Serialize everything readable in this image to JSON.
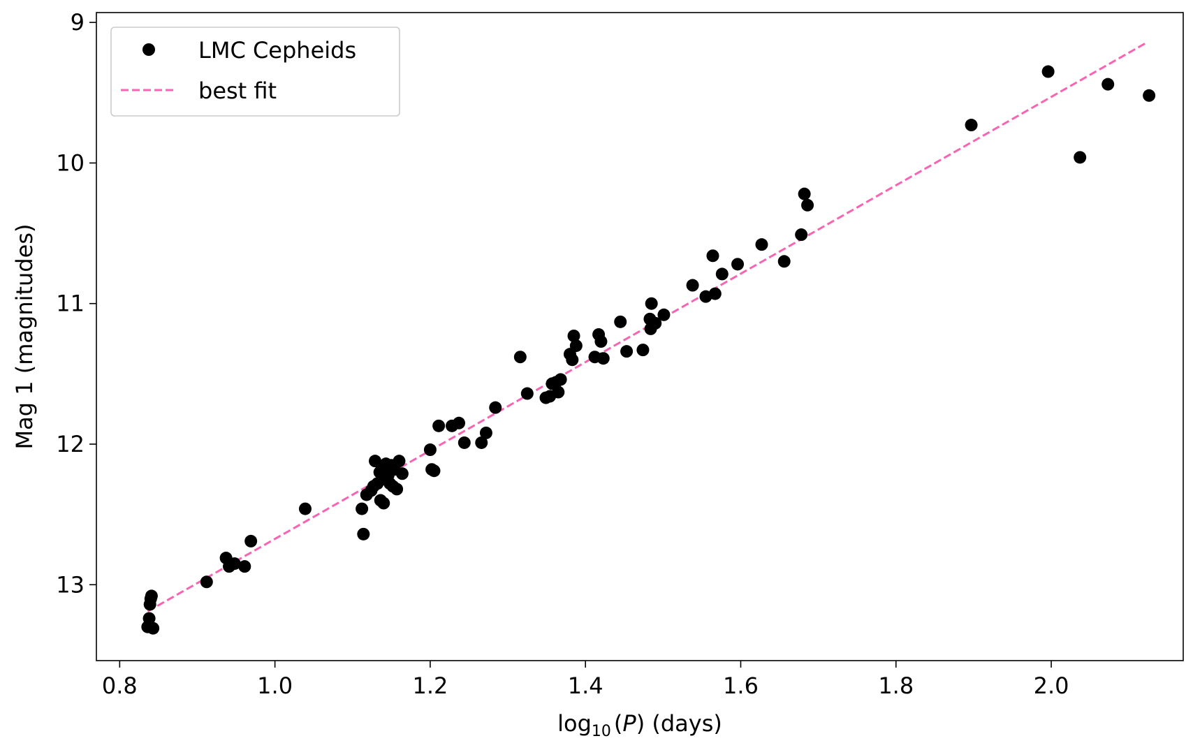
{
  "chart_data": {
    "type": "scatter",
    "title": "",
    "xlabel": "log₁₀(P) (days)",
    "xlabel_parts": {
      "prefix": "log",
      "sub": "10",
      "open": "(",
      "var": "P",
      "close": ") (days)"
    },
    "ylabel": "Mag 1 (magnitudes)",
    "xlim": [
      0.77,
      2.17
    ],
    "ylim": [
      13.54,
      8.93
    ],
    "y_inverted": true,
    "grid": false,
    "legend_position": "top-left",
    "x_ticks": [
      0.8,
      1.0,
      1.2,
      1.4,
      1.6,
      1.8,
      2.0
    ],
    "x_tick_labels": [
      "0.8",
      "1.0",
      "1.2",
      "1.4",
      "1.6",
      "1.8",
      "2.0"
    ],
    "y_ticks": [
      9,
      10,
      11,
      12,
      13
    ],
    "y_tick_labels": [
      "9",
      "10",
      "11",
      "12",
      "13"
    ],
    "series": [
      {
        "name": "LMC Cepheids",
        "kind": "scatter",
        "color": "#000000",
        "points": [
          [
            0.836,
            13.3
          ],
          [
            0.838,
            13.24
          ],
          [
            0.839,
            13.14
          ],
          [
            0.84,
            13.1
          ],
          [
            0.841,
            13.08
          ],
          [
            0.843,
            13.31
          ],
          [
            0.912,
            12.98
          ],
          [
            0.937,
            12.81
          ],
          [
            0.941,
            12.87
          ],
          [
            0.948,
            12.85
          ],
          [
            0.961,
            12.87
          ],
          [
            0.969,
            12.69
          ],
          [
            1.039,
            12.46
          ],
          [
            1.112,
            12.46
          ],
          [
            1.114,
            12.64
          ],
          [
            1.118,
            12.36
          ],
          [
            1.124,
            12.33
          ],
          [
            1.127,
            12.3
          ],
          [
            1.129,
            12.12
          ],
          [
            1.132,
            12.28
          ],
          [
            1.135,
            12.2
          ],
          [
            1.136,
            12.4
          ],
          [
            1.138,
            12.17
          ],
          [
            1.14,
            12.42
          ],
          [
            1.142,
            12.25
          ],
          [
            1.143,
            12.14
          ],
          [
            1.146,
            12.22
          ],
          [
            1.148,
            12.28
          ],
          [
            1.15,
            12.15
          ],
          [
            1.152,
            12.3
          ],
          [
            1.154,
            12.18
          ],
          [
            1.157,
            12.32
          ],
          [
            1.16,
            12.12
          ],
          [
            1.164,
            12.21
          ],
          [
            1.2,
            12.04
          ],
          [
            1.202,
            12.18
          ],
          [
            1.205,
            12.19
          ],
          [
            1.211,
            11.87
          ],
          [
            1.228,
            11.87
          ],
          [
            1.237,
            11.85
          ],
          [
            1.244,
            11.99
          ],
          [
            1.266,
            11.99
          ],
          [
            1.272,
            11.92
          ],
          [
            1.284,
            11.74
          ],
          [
            1.316,
            11.38
          ],
          [
            1.325,
            11.64
          ],
          [
            1.349,
            11.67
          ],
          [
            1.354,
            11.66
          ],
          [
            1.357,
            11.57
          ],
          [
            1.362,
            11.56
          ],
          [
            1.365,
            11.63
          ],
          [
            1.368,
            11.54
          ],
          [
            1.38,
            11.36
          ],
          [
            1.383,
            11.4
          ],
          [
            1.385,
            11.23
          ],
          [
            1.388,
            11.3
          ],
          [
            1.412,
            11.38
          ],
          [
            1.417,
            11.22
          ],
          [
            1.42,
            11.27
          ],
          [
            1.423,
            11.39
          ],
          [
            1.445,
            11.13
          ],
          [
            1.453,
            11.34
          ],
          [
            1.474,
            11.33
          ],
          [
            1.483,
            11.11
          ],
          [
            1.484,
            11.18
          ],
          [
            1.485,
            11.0
          ],
          [
            1.49,
            11.14
          ],
          [
            1.501,
            11.08
          ],
          [
            1.538,
            10.87
          ],
          [
            1.555,
            10.95
          ],
          [
            1.564,
            10.66
          ],
          [
            1.567,
            10.93
          ],
          [
            1.576,
            10.79
          ],
          [
            1.596,
            10.72
          ],
          [
            1.627,
            10.58
          ],
          [
            1.656,
            10.7
          ],
          [
            1.678,
            10.51
          ],
          [
            1.682,
            10.22
          ],
          [
            1.686,
            10.3
          ],
          [
            1.897,
            9.73
          ],
          [
            1.996,
            9.35
          ],
          [
            2.037,
            9.96
          ],
          [
            2.073,
            9.44
          ],
          [
            2.126,
            9.52
          ]
        ]
      },
      {
        "name": "best fit",
        "kind": "line",
        "style": "dashed",
        "color": "#f765b2",
        "points": [
          [
            0.836,
            13.19
          ],
          [
            2.124,
            9.14
          ]
        ]
      }
    ]
  }
}
